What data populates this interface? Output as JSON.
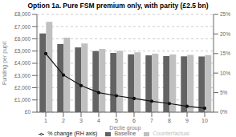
{
  "chart_data": {
    "type": "bar",
    "title": "Option 1a. Pure FSM premium only, with parity (£2.5 bn)",
    "x_label": "Decile group",
    "y_label": "Funding per pupil",
    "categories": [
      "1",
      "2",
      "3",
      "4",
      "5",
      "6",
      "7",
      "8",
      "9",
      "10"
    ],
    "series": [
      {
        "name": "Baseline",
        "color": "#636363",
        "values": [
          6450,
          5580,
          5300,
          5000,
          4850,
          4730,
          4650,
          4590,
          4570,
          4560
        ]
      },
      {
        "name": "Counterfactual",
        "color": "#c0c0c0",
        "values": [
          7400,
          6100,
          5620,
          5180,
          5020,
          4900,
          4790,
          4720,
          4690,
          4680
        ]
      },
      {
        "name": "% change (RH axis)",
        "type": "line",
        "axis": "y2",
        "color": "#111111",
        "marker": "circle",
        "values": [
          15.0,
          9.5,
          6.8,
          5.0,
          4.2,
          3.5,
          2.8,
          2.2,
          1.5,
          1.0
        ]
      }
    ],
    "ylim": [
      0,
      8000
    ],
    "yticks": [
      {
        "value": 0,
        "label": "£0"
      },
      {
        "value": 1000,
        "label": "£1,000"
      },
      {
        "value": 2000,
        "label": "£2,000"
      },
      {
        "value": 3000,
        "label": "£3,000"
      },
      {
        "value": 4000,
        "label": "£4,000"
      },
      {
        "value": 5000,
        "label": "£5,000"
      },
      {
        "value": 6000,
        "label": "£6,000"
      },
      {
        "value": 7000,
        "label": "£7,000"
      },
      {
        "value": 8000,
        "label": "£8,000"
      }
    ],
    "y2lim": [
      0,
      25
    ],
    "y2ticks": [
      {
        "value": 0,
        "label": "0%"
      },
      {
        "value": 5,
        "label": "5%"
      },
      {
        "value": 10,
        "label": "10%"
      },
      {
        "value": 15,
        "label": "15%"
      },
      {
        "value": 20,
        "label": "20%"
      },
      {
        "value": 25,
        "label": "25%"
      }
    ],
    "grid": true,
    "legend": "bottom"
  }
}
